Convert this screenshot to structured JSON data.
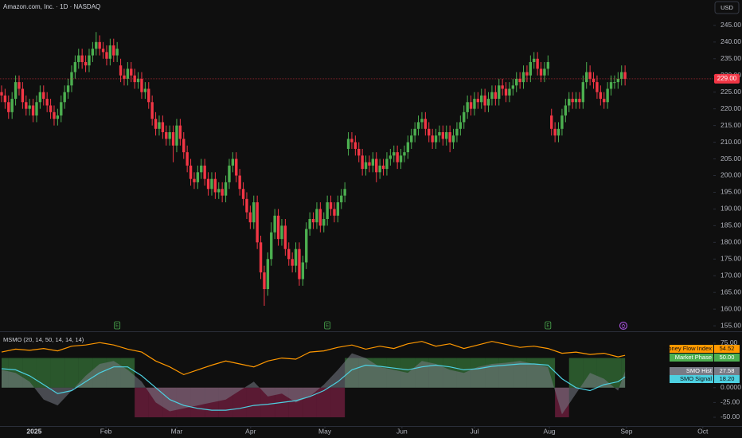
{
  "chart_data": [
    {
      "type": "candlestick",
      "title": "Amazon.com, Inc. · 1D · NASDAQ",
      "currency": "USD",
      "up_color": "#4caf50",
      "down_color": "#f23645",
      "xlim": [
        -0.45,
        203.2
      ],
      "xticks": [
        {
          "value": 9.3,
          "label": "2025"
        },
        {
          "value": 29.8,
          "label": "Feb"
        },
        {
          "value": 50,
          "label": "Mar"
        },
        {
          "value": 71.1,
          "label": "Apr"
        },
        {
          "value": 92.3,
          "label": "May"
        },
        {
          "value": 114.3,
          "label": "Jun"
        },
        {
          "value": 135,
          "label": "Jul"
        },
        {
          "value": 156.4,
          "label": "Aug"
        },
        {
          "value": 178.4,
          "label": "Sep"
        },
        {
          "value": 200.2,
          "label": "Oct"
        }
      ],
      "ylim": [
        153.6,
        252.6
      ],
      "yticks": [
        {
          "value": 155,
          "label": "155.00"
        },
        {
          "value": 160,
          "label": "160.00"
        },
        {
          "value": 165,
          "label": "165.00"
        },
        {
          "value": 170,
          "label": "170.00"
        },
        {
          "value": 175,
          "label": "175.00"
        },
        {
          "value": 180,
          "label": "180.00"
        },
        {
          "value": 185,
          "label": "185.00"
        },
        {
          "value": 190,
          "label": "190.00"
        },
        {
          "value": 195,
          "label": "195.00"
        },
        {
          "value": 200,
          "label": "200.00"
        },
        {
          "value": 205,
          "label": "205.00"
        },
        {
          "value": 210,
          "label": "210.00"
        },
        {
          "value": 215,
          "label": "215.00"
        },
        {
          "value": 220,
          "label": "220.00"
        },
        {
          "value": 225,
          "label": "225.00"
        },
        {
          "value": 230,
          "label": "230.00"
        },
        {
          "value": 235,
          "label": "235.00"
        },
        {
          "value": 240,
          "label": "240.00"
        },
        {
          "value": 245,
          "label": "245.00"
        }
      ],
      "open": [
        225,
        224,
        222,
        219,
        223,
        228,
        226,
        222,
        220,
        221,
        218,
        222,
        225,
        223,
        221,
        219,
        217,
        218,
        222,
        225,
        227,
        231,
        234,
        236,
        234,
        233,
        236,
        238,
        240,
        238,
        237,
        235,
        239,
        236,
        233,
        230,
        229,
        232,
        230,
        228,
        229,
        225,
        226,
        222,
        217,
        214,
        216,
        213,
        211,
        213,
        209,
        215,
        211,
        207,
        203,
        199,
        198,
        201,
        203,
        199,
        196,
        199,
        195,
        196,
        194,
        198,
        203,
        205,
        200,
        196,
        193,
        189,
        186,
        192,
        180,
        171,
        166,
        175,
        183,
        188,
        181,
        185,
        178,
        175,
        173,
        178,
        169,
        174,
        184,
        187,
        186,
        190,
        185,
        187,
        192,
        190,
        188,
        192,
        194,
        208,
        211,
        210,
        208,
        206,
        202,
        204,
        203,
        205,
        201,
        203,
        202,
        205,
        206,
        207,
        204,
        206,
        207,
        210,
        212,
        214,
        216,
        217,
        214,
        212,
        210,
        212,
        213,
        211,
        213,
        210,
        212,
        214,
        216,
        219,
        222,
        220,
        223,
        222,
        224,
        221,
        223,
        225,
        223,
        227,
        226,
        224,
        226,
        227,
        229,
        228,
        231,
        230,
        234,
        235,
        232,
        230,
        232,
        218,
        214,
        212,
        214,
        218,
        221,
        223,
        222,
        223,
        222,
        228,
        231,
        229,
        228,
        225,
        223,
        222,
        226,
        228,
        228,
        229,
        231
      ],
      "high": [
        227,
        226,
        224,
        225,
        230,
        230,
        228,
        224,
        223,
        223,
        224,
        227,
        227,
        225,
        223,
        221,
        220,
        224,
        227,
        229,
        233,
        236,
        238,
        238,
        236,
        238,
        240,
        243,
        242,
        240,
        239,
        241,
        241,
        240,
        235,
        232,
        234,
        234,
        232,
        231,
        231,
        228,
        228,
        224,
        219,
        218,
        218,
        215,
        215,
        215,
        217,
        217,
        213,
        209,
        205,
        201,
        203,
        205,
        205,
        201,
        201,
        201,
        198,
        198,
        200,
        205,
        207,
        207,
        202,
        198,
        195,
        191,
        194,
        194,
        182,
        173,
        177,
        186,
        190,
        190,
        187,
        187,
        180,
        177,
        180,
        180,
        176,
        186,
        189,
        189,
        192,
        192,
        189,
        194,
        194,
        192,
        194,
        196,
        198,
        213,
        213,
        212,
        210,
        208,
        206,
        206,
        207,
        207,
        205,
        205,
        207,
        208,
        209,
        209,
        208,
        209,
        212,
        214,
        216,
        218,
        219,
        219,
        216,
        214,
        214,
        215,
        215,
        215,
        215,
        214,
        216,
        218,
        221,
        224,
        224,
        225,
        225,
        226,
        226,
        225,
        227,
        227,
        229,
        229,
        228,
        228,
        229,
        231,
        231,
        233,
        233,
        236,
        237,
        237,
        234,
        234,
        236,
        220,
        216,
        216,
        220,
        223,
        225,
        225,
        225,
        225,
        230,
        234,
        233,
        231,
        230,
        227,
        225,
        228,
        230,
        230,
        231,
        233,
        233
      ],
      "low": [
        222,
        220,
        217,
        217,
        221,
        224,
        220,
        218,
        218,
        216,
        216,
        220,
        221,
        219,
        217,
        215,
        215,
        216,
        220,
        223,
        225,
        229,
        232,
        232,
        231,
        231,
        234,
        236,
        236,
        235,
        233,
        233,
        234,
        234,
        228,
        227,
        227,
        228,
        226,
        226,
        223,
        223,
        220,
        215,
        212,
        212,
        211,
        209,
        209,
        204,
        207,
        209,
        205,
        201,
        197,
        196,
        196,
        199,
        197,
        194,
        194,
        193,
        193,
        192,
        192,
        196,
        201,
        198,
        194,
        191,
        187,
        184,
        184,
        178,
        169,
        161,
        164,
        173,
        181,
        179,
        179,
        176,
        173,
        171,
        171,
        167,
        167,
        172,
        182,
        184,
        184,
        183,
        183,
        185,
        188,
        186,
        186,
        190,
        192,
        206,
        208,
        206,
        204,
        200,
        200,
        201,
        201,
        198,
        199,
        200,
        200,
        203,
        204,
        202,
        202,
        204,
        205,
        208,
        210,
        212,
        214,
        212,
        210,
        208,
        208,
        210,
        209,
        209,
        207,
        208,
        210,
        212,
        214,
        217,
        218,
        218,
        220,
        220,
        219,
        219,
        221,
        221,
        221,
        224,
        222,
        222,
        224,
        225,
        226,
        226,
        228,
        228,
        232,
        230,
        228,
        228,
        230,
        212,
        210,
        210,
        212,
        216,
        219,
        220,
        220,
        220,
        220,
        226,
        227,
        226,
        223,
        221,
        220,
        220,
        224,
        226,
        226,
        227,
        227
      ],
      "close": [
        224,
        222,
        219,
        223,
        228,
        226,
        222,
        220,
        221,
        218,
        222,
        225,
        223,
        221,
        219,
        217,
        218,
        222,
        225,
        227,
        231,
        234,
        236,
        234,
        233,
        236,
        238,
        240,
        238,
        237,
        235,
        239,
        236,
        238,
        230,
        229,
        232,
        230,
        228,
        229,
        225,
        226,
        222,
        217,
        214,
        216,
        213,
        211,
        213,
        209,
        215,
        211,
        207,
        203,
        199,
        198,
        201,
        203,
        199,
        196,
        199,
        195,
        196,
        194,
        198,
        203,
        205,
        200,
        196,
        193,
        189,
        186,
        192,
        180,
        171,
        166,
        175,
        183,
        188,
        181,
        185,
        178,
        175,
        173,
        178,
        169,
        174,
        184,
        187,
        186,
        190,
        185,
        187,
        192,
        190,
        188,
        192,
        194,
        196,
        211,
        210,
        208,
        206,
        202,
        204,
        203,
        205,
        201,
        203,
        202,
        205,
        206,
        207,
        204,
        206,
        207,
        210,
        212,
        214,
        216,
        217,
        214,
        212,
        210,
        212,
        213,
        211,
        213,
        210,
        212,
        214,
        216,
        219,
        222,
        220,
        223,
        222,
        224,
        221,
        223,
        225,
        223,
        227,
        226,
        224,
        226,
        227,
        229,
        228,
        231,
        230,
        234,
        235,
        232,
        230,
        232,
        234,
        214,
        212,
        214,
        218,
        221,
        223,
        222,
        223,
        222,
        228,
        231,
        229,
        228,
        225,
        223,
        222,
        226,
        228,
        228,
        229,
        231,
        229
      ],
      "last_price": {
        "value": 229,
        "label": "229.00"
      },
      "events": [
        {
          "label": "E",
          "x": 33
        },
        {
          "label": "E",
          "x": 93
        },
        {
          "label": "E",
          "x": 156
        }
      ]
    },
    {
      "type": "line",
      "title": "MSMO (20, 14, 50, 14, 14, 14)",
      "xlim": [
        -0.45,
        203.2
      ],
      "ylim": [
        -64.8,
        92.4
      ],
      "yticks": [
        {
          "value": 75,
          "label": "75.00"
        },
        {
          "value": 50,
          "label": "50.00"
        },
        {
          "value": 25,
          "label": "25.00"
        },
        {
          "value": 0,
          "label": "0.0000"
        },
        {
          "value": -25,
          "label": "-25.00"
        },
        {
          "value": -50,
          "label": "-50.00"
        }
      ],
      "x": [
        0,
        4,
        8,
        12,
        16,
        20,
        24,
        28,
        32,
        36,
        40,
        44,
        48,
        52,
        56,
        60,
        64,
        68,
        72,
        76,
        80,
        84,
        88,
        92,
        96,
        100,
        104,
        108,
        112,
        116,
        120,
        124,
        128,
        132,
        136,
        140,
        144,
        148,
        152,
        156,
        160,
        164,
        168,
        172,
        176,
        178
      ],
      "series": [
        {
          "name": "Money Flow Index",
          "kind": "line",
          "color": "#ff9800",
          "last": 54.52,
          "values": [
            60,
            65,
            63,
            66,
            62,
            70,
            72,
            76,
            72,
            65,
            60,
            45,
            35,
            22,
            30,
            38,
            45,
            40,
            35,
            45,
            50,
            48,
            60,
            62,
            68,
            72,
            65,
            70,
            66,
            74,
            78,
            70,
            74,
            66,
            72,
            78,
            73,
            68,
            70,
            66,
            58,
            60,
            56,
            58,
            52,
            54.52
          ]
        },
        {
          "name": "Market Phase",
          "kind": "phase",
          "color": "#4caf50",
          "negative_color": "#b5295f",
          "last": {
            "value": 50,
            "label": "50.00"
          },
          "values": [
            50,
            50,
            50,
            50,
            50,
            50,
            50,
            50,
            50,
            50,
            -50,
            -50,
            -50,
            -50,
            -50,
            -50,
            -50,
            -50,
            -50,
            -50,
            -50,
            -50,
            -50,
            -50,
            -50,
            50,
            50,
            50,
            50,
            50,
            50,
            50,
            50,
            50,
            50,
            50,
            50,
            50,
            50,
            50,
            -50,
            50,
            50,
            50,
            50,
            50
          ]
        },
        {
          "name": "SMO Hist",
          "kind": "area",
          "color": "#787b86",
          "last": 27.58,
          "values": [
            30,
            25,
            10,
            -20,
            -30,
            -5,
            20,
            40,
            45,
            30,
            10,
            -25,
            -40,
            -35,
            -30,
            -25,
            -20,
            -5,
            10,
            -15,
            -10,
            -25,
            -15,
            5,
            30,
            58,
            50,
            35,
            30,
            25,
            45,
            40,
            30,
            25,
            35,
            40,
            42,
            45,
            40,
            35,
            -45,
            -10,
            25,
            15,
            -5,
            27.58
          ]
        },
        {
          "name": "SMO Signal",
          "kind": "line",
          "color": "#4dd0e1",
          "last": {
            "value": 18.2,
            "label": "18.20"
          },
          "values": [
            32,
            30,
            20,
            5,
            -10,
            -5,
            10,
            25,
            35,
            35,
            20,
            0,
            -20,
            -30,
            -35,
            -38,
            -38,
            -35,
            -30,
            -28,
            -25,
            -22,
            -15,
            -5,
            10,
            30,
            38,
            36,
            33,
            30,
            35,
            38,
            35,
            30,
            32,
            36,
            38,
            40,
            40,
            38,
            15,
            0,
            -5,
            5,
            10,
            18.2
          ]
        }
      ]
    }
  ]
}
